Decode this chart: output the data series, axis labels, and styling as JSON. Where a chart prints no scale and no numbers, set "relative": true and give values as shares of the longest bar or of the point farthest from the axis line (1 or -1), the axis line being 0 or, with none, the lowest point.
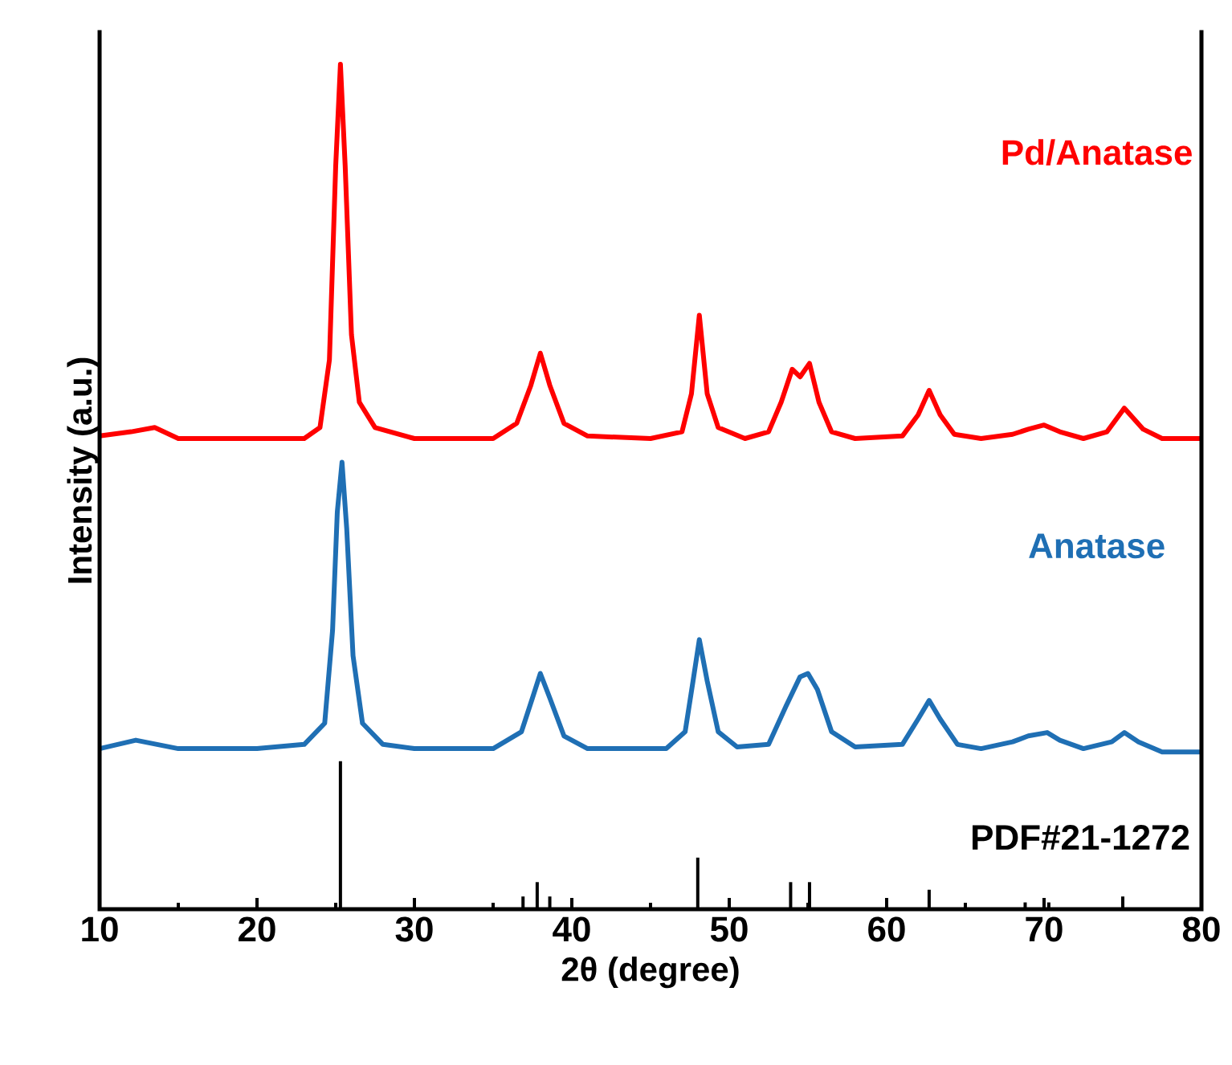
{
  "chart_data": {
    "type": "line",
    "relative": true,
    "xlabel": "2θ (degree)",
    "ylabel": "Intensity (a.u.)",
    "xlim": [
      10,
      80
    ],
    "xticks": [
      10,
      20,
      30,
      40,
      50,
      60,
      70,
      80
    ],
    "series": [
      {
        "name": "Pd/Anatase",
        "color": "#ff0000",
        "x": [
          10,
          12,
          13.5,
          15,
          20,
          23,
          24,
          24.6,
          25.0,
          25.3,
          25.6,
          26.0,
          26.5,
          27.5,
          30,
          35,
          36.5,
          37.4,
          38.0,
          38.6,
          39.5,
          41,
          45,
          47,
          47.6,
          48.1,
          48.6,
          49.3,
          51,
          52.5,
          53.3,
          54.0,
          54.5,
          55.1,
          55.7,
          56.5,
          58,
          61,
          62.0,
          62.7,
          63.4,
          64.3,
          66,
          68,
          69,
          70,
          71,
          72.5,
          74,
          75.1,
          76.3,
          77.5,
          80
        ],
        "values": [
          0.56,
          0.565,
          0.57,
          0.557,
          0.557,
          0.557,
          0.57,
          0.65,
          0.88,
          1.0,
          0.88,
          0.68,
          0.6,
          0.57,
          0.557,
          0.557,
          0.575,
          0.62,
          0.658,
          0.62,
          0.575,
          0.56,
          0.557,
          0.565,
          0.61,
          0.703,
          0.61,
          0.57,
          0.557,
          0.565,
          0.6,
          0.639,
          0.63,
          0.646,
          0.6,
          0.565,
          0.557,
          0.56,
          0.585,
          0.614,
          0.585,
          0.562,
          0.557,
          0.562,
          0.568,
          0.573,
          0.565,
          0.557,
          0.565,
          0.593,
          0.568,
          0.557,
          0.557
        ]
      },
      {
        "name": "Anatase",
        "color": "#1f6fb4",
        "x": [
          10,
          12.3,
          15,
          20,
          23,
          24.3,
          24.8,
          25.1,
          25.4,
          25.7,
          26.1,
          26.7,
          28,
          30,
          35,
          36.8,
          37.5,
          38.0,
          38.6,
          39.5,
          41,
          46,
          47.2,
          47.7,
          48.1,
          48.6,
          49.3,
          50.5,
          52.5,
          53.6,
          54.5,
          55.0,
          55.6,
          56.5,
          58,
          61,
          62.0,
          62.7,
          63.4,
          64.5,
          66,
          68,
          69,
          70.2,
          71,
          72.5,
          74.3,
          75.1,
          76,
          77.5,
          80
        ],
        "values": [
          0.19,
          0.2,
          0.19,
          0.19,
          0.195,
          0.22,
          0.33,
          0.47,
          0.529,
          0.45,
          0.3,
          0.22,
          0.195,
          0.19,
          0.19,
          0.21,
          0.25,
          0.279,
          0.25,
          0.205,
          0.19,
          0.19,
          0.21,
          0.27,
          0.319,
          0.27,
          0.21,
          0.192,
          0.195,
          0.24,
          0.275,
          0.279,
          0.26,
          0.21,
          0.192,
          0.195,
          0.225,
          0.247,
          0.225,
          0.195,
          0.19,
          0.198,
          0.205,
          0.209,
          0.2,
          0.19,
          0.198,
          0.209,
          0.198,
          0.186,
          0.186
        ]
      },
      {
        "name": "PDF#21-1272",
        "type": "bar",
        "color": "#000000",
        "x": [
          25.3,
          36.9,
          37.8,
          38.6,
          48.0,
          53.9,
          55.1,
          62.7,
          68.8,
          70.3,
          75.0
        ],
        "values": [
          0.175,
          0.015,
          0.032,
          0.015,
          0.061,
          0.032,
          0.032,
          0.023,
          0.008,
          0.008,
          0.015
        ]
      }
    ]
  }
}
